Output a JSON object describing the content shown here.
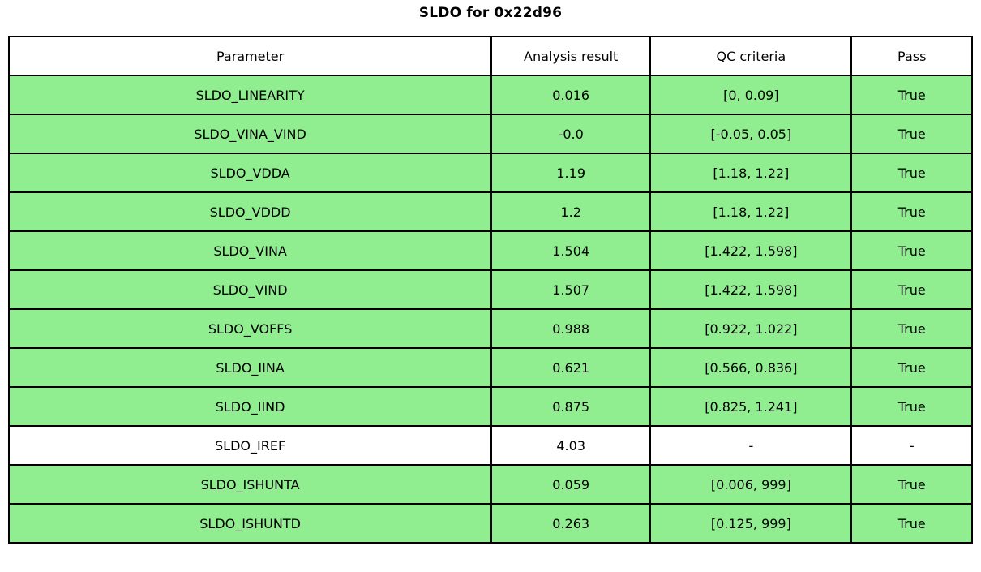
{
  "title": "SLDO for 0x22d96",
  "colors": {
    "pass_green": "#90EE90",
    "neutral_white": "#FFFFFF",
    "border_black": "#000000"
  },
  "chart_data": {
    "type": "table",
    "title": "SLDO for 0x22d96",
    "columns": [
      "Parameter",
      "Analysis result",
      "QC criteria",
      "Pass"
    ],
    "rows": [
      {
        "parameter": "SLDO_LINEARITY",
        "result": "0.016",
        "criteria": "[0, 0.09]",
        "pass": "True",
        "bg": "pass_green"
      },
      {
        "parameter": "SLDO_VINA_VIND",
        "result": "-0.0",
        "criteria": "[-0.05, 0.05]",
        "pass": "True",
        "bg": "pass_green"
      },
      {
        "parameter": "SLDO_VDDA",
        "result": "1.19",
        "criteria": "[1.18, 1.22]",
        "pass": "True",
        "bg": "pass_green"
      },
      {
        "parameter": "SLDO_VDDD",
        "result": "1.2",
        "criteria": "[1.18, 1.22]",
        "pass": "True",
        "bg": "pass_green"
      },
      {
        "parameter": "SLDO_VINA",
        "result": "1.504",
        "criteria": "[1.422, 1.598]",
        "pass": "True",
        "bg": "pass_green"
      },
      {
        "parameter": "SLDO_VIND",
        "result": "1.507",
        "criteria": "[1.422, 1.598]",
        "pass": "True",
        "bg": "pass_green"
      },
      {
        "parameter": "SLDO_VOFFS",
        "result": "0.988",
        "criteria": "[0.922, 1.022]",
        "pass": "True",
        "bg": "pass_green"
      },
      {
        "parameter": "SLDO_IINA",
        "result": "0.621",
        "criteria": "[0.566, 0.836]",
        "pass": "True",
        "bg": "pass_green"
      },
      {
        "parameter": "SLDO_IIND",
        "result": "0.875",
        "criteria": "[0.825, 1.241]",
        "pass": "True",
        "bg": "pass_green"
      },
      {
        "parameter": "SLDO_IREF",
        "result": "4.03",
        "criteria": "-",
        "pass": "-",
        "bg": "neutral_white"
      },
      {
        "parameter": "SLDO_ISHUNTA",
        "result": "0.059",
        "criteria": "[0.006, 999]",
        "pass": "True",
        "bg": "pass_green"
      },
      {
        "parameter": "SLDO_ISHUNTD",
        "result": "0.263",
        "criteria": "[0.125, 999]",
        "pass": "True",
        "bg": "pass_green"
      }
    ]
  }
}
